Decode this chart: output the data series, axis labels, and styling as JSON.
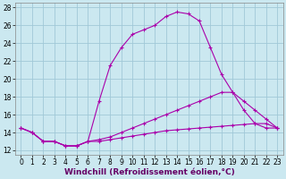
{
  "xlabel": "Windchill (Refroidissement éolien,°C)",
  "background_color": "#cbe8f0",
  "grid_color": "#a0c8d8",
  "line_color": "#aa00aa",
  "xlim": [
    -0.5,
    23.5
  ],
  "ylim": [
    11.5,
    28.5
  ],
  "xticks": [
    0,
    1,
    2,
    3,
    4,
    5,
    6,
    7,
    8,
    9,
    10,
    11,
    12,
    13,
    14,
    15,
    16,
    17,
    18,
    19,
    20,
    21,
    22,
    23
  ],
  "yticks": [
    12,
    14,
    16,
    18,
    20,
    22,
    24,
    26,
    28
  ],
  "curve1_x": [
    0,
    1,
    2,
    3,
    4,
    5,
    6,
    7,
    8,
    9,
    10,
    11,
    12,
    13,
    14,
    15,
    16,
    17,
    18,
    19,
    20,
    21,
    22,
    23
  ],
  "curve1_y": [
    14.5,
    14.0,
    13.0,
    13.0,
    12.5,
    12.5,
    13.0,
    17.5,
    21.5,
    23.5,
    25.0,
    25.5,
    26.0,
    27.0,
    27.5,
    27.3,
    26.5,
    23.5,
    20.5,
    18.5,
    16.5,
    15.0,
    14.5,
    14.5
  ],
  "curve2_x": [
    0,
    1,
    2,
    3,
    4,
    5,
    6,
    7,
    8,
    9,
    10,
    11,
    12,
    13,
    14,
    15,
    16,
    17,
    18,
    19,
    20,
    21,
    22,
    23
  ],
  "curve2_y": [
    14.5,
    14.0,
    13.0,
    13.0,
    12.5,
    12.5,
    13.0,
    13.2,
    13.5,
    14.0,
    14.5,
    15.0,
    15.5,
    16.0,
    16.5,
    17.0,
    17.5,
    18.0,
    18.5,
    18.5,
    17.5,
    16.5,
    15.5,
    14.5
  ],
  "curve3_x": [
    0,
    1,
    2,
    3,
    4,
    5,
    6,
    7,
    8,
    9,
    10,
    11,
    12,
    13,
    14,
    15,
    16,
    17,
    18,
    19,
    20,
    21,
    22,
    23
  ],
  "curve3_y": [
    14.5,
    14.0,
    13.0,
    13.0,
    12.5,
    12.5,
    13.0,
    13.0,
    13.2,
    13.4,
    13.6,
    13.8,
    14.0,
    14.2,
    14.3,
    14.4,
    14.5,
    14.6,
    14.7,
    14.8,
    14.9,
    15.0,
    15.0,
    14.5
  ],
  "xlabel_fontsize": 6.5,
  "tick_fontsize": 5.5
}
